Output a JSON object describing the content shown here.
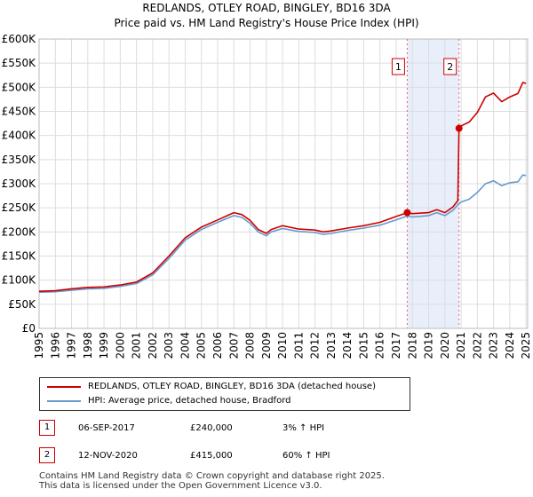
{
  "header": {
    "title": "REDLANDS, OTLEY ROAD, BINGLEY, BD16 3DA",
    "subtitle": "Price paid vs. HM Land Registry's House Price Index (HPI)"
  },
  "colors": {
    "property": "#cc0000",
    "hpi": "#6699cc",
    "shade": "#e8eefa",
    "marker_line": "#dd6677"
  },
  "chart_data": {
    "type": "line",
    "xlim": [
      1995,
      2025.1
    ],
    "ylim": [
      0,
      600000
    ],
    "yticks": [
      0,
      50000,
      100000,
      150000,
      200000,
      250000,
      300000,
      350000,
      400000,
      450000,
      500000,
      550000,
      600000
    ],
    "ytick_labels": [
      "£0",
      "£50K",
      "£100K",
      "£150K",
      "£200K",
      "£250K",
      "£300K",
      "£350K",
      "£400K",
      "£450K",
      "£500K",
      "£550K",
      "£600K"
    ],
    "xticks": [
      1995,
      1996,
      1997,
      1998,
      1999,
      2000,
      2001,
      2002,
      2003,
      2004,
      2005,
      2006,
      2007,
      2008,
      2009,
      2010,
      2011,
      2012,
      2013,
      2014,
      2015,
      2016,
      2017,
      2018,
      2019,
      2020,
      2021,
      2022,
      2023,
      2024,
      2025
    ],
    "xtick_labels": [
      "1995",
      "1996",
      "1997",
      "1998",
      "1999",
      "2000",
      "2001",
      "2002",
      "2003",
      "2004",
      "2005",
      "2006",
      "2007",
      "2008",
      "2009",
      "2010",
      "2011",
      "2012",
      "2013",
      "2014",
      "2015",
      "2016",
      "2017",
      "2018",
      "2019",
      "2020",
      "2021",
      "2022",
      "2023",
      "2024",
      "2025"
    ],
    "grid": true,
    "shaded_region": [
      2017.68,
      2020.87
    ],
    "series": [
      {
        "name": "REDLANDS, OTLEY ROAD, BINGLEY, BD16 3DA (detached house)",
        "color": "#cc0000",
        "x": [
          1995,
          1996,
          1997,
          1998,
          1999,
          2000,
          2001,
          2002,
          2003,
          2004,
          2005,
          2006,
          2007,
          2007.5,
          2008,
          2008.5,
          2009,
          2009.3,
          2010,
          2011,
          2012,
          2012.5,
          2013,
          2014,
          2015,
          2016,
          2017,
          2017.68,
          2018,
          2019,
          2019.5,
          2020,
          2020.5,
          2020.8,
          2020.87,
          2021,
          2021.5,
          2022,
          2022.5,
          2023,
          2023.5,
          2024,
          2024.5,
          2024.8,
          2025
        ],
        "y": [
          77000,
          78000,
          82000,
          85000,
          86000,
          90000,
          96000,
          115000,
          150000,
          188000,
          210000,
          225000,
          240000,
          236000,
          224000,
          205000,
          197000,
          205000,
          213000,
          206000,
          204000,
          200000,
          202000,
          208000,
          213000,
          220000,
          232000,
          240000,
          238000,
          240000,
          246000,
          240000,
          252000,
          265000,
          415000,
          420000,
          428000,
          448000,
          480000,
          488000,
          470000,
          480000,
          487000,
          510000,
          508000
        ]
      },
      {
        "name": "HPI: Average price, detached house, Bradford",
        "color": "#6699cc",
        "x": [
          1995,
          1996,
          1997,
          1998,
          1999,
          2000,
          2001,
          2002,
          2003,
          2004,
          2005,
          2006,
          2007,
          2007.5,
          2008,
          2008.5,
          2009,
          2009.3,
          2010,
          2011,
          2012,
          2012.5,
          2013,
          2014,
          2015,
          2016,
          2017,
          2017.68,
          2018,
          2019,
          2019.5,
          2020,
          2020.5,
          2020.87,
          2021,
          2021.5,
          2022,
          2022.5,
          2023,
          2023.5,
          2024,
          2024.5,
          2024.8,
          2025
        ],
        "y": [
          75000,
          76000,
          79000,
          82000,
          83000,
          87000,
          93000,
          111000,
          145000,
          183000,
          205000,
          220000,
          234000,
          230000,
          218000,
          200000,
          192000,
          200000,
          207000,
          201000,
          199000,
          195000,
          197000,
          203000,
          208000,
          214000,
          225000,
          233000,
          231000,
          234000,
          240000,
          234000,
          245000,
          259000,
          262000,
          268000,
          282000,
          300000,
          306000,
          296000,
          302000,
          304000,
          318000,
          317000
        ]
      }
    ],
    "sales": [
      {
        "label": "1",
        "x": 2017.68,
        "price": 240000
      },
      {
        "label": "2",
        "x": 2020.87,
        "price": 415000
      }
    ]
  },
  "legend": {
    "property_label": "REDLANDS, OTLEY ROAD, BINGLEY, BD16 3DA (detached house)",
    "hpi_label": "HPI: Average price, detached house, Bradford"
  },
  "transactions": [
    {
      "num": "1",
      "date": "06-SEP-2017",
      "price": "£240,000",
      "hpi": "3% ↑ HPI"
    },
    {
      "num": "2",
      "date": "12-NOV-2020",
      "price": "£415,000",
      "hpi": "60% ↑ HPI"
    }
  ],
  "footer": {
    "line1": "Contains HM Land Registry data © Crown copyright and database right 2025.",
    "line2": "This data is licensed under the Open Government Licence v3.0."
  }
}
